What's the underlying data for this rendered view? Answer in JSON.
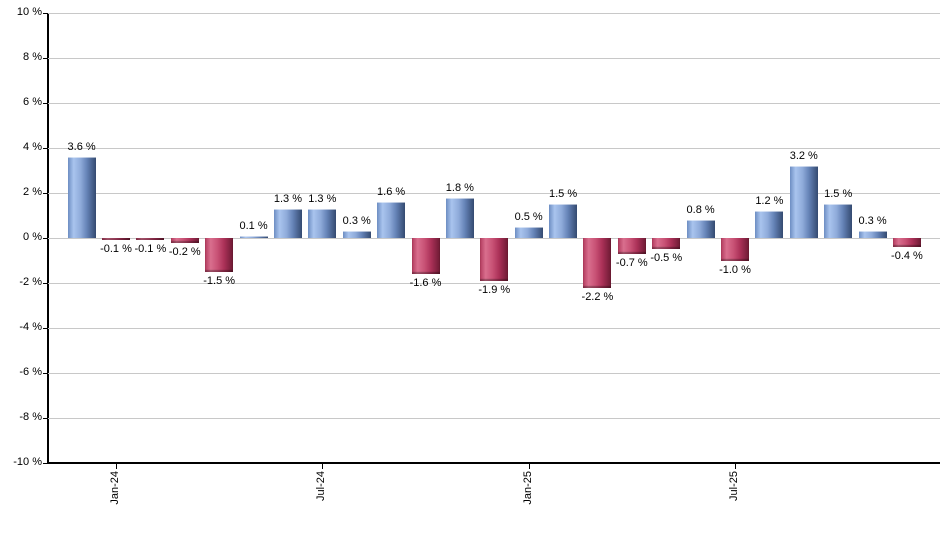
{
  "chart_data": {
    "type": "bar",
    "title": "",
    "unit": "%",
    "values": [
      3.6,
      -0.1,
      -0.1,
      -0.2,
      -1.5,
      0.1,
      1.3,
      1.3,
      0.3,
      1.6,
      -1.6,
      1.8,
      -1.9,
      0.5,
      1.5,
      -2.2,
      -0.7,
      -0.5,
      0.8,
      -1.0,
      1.2,
      3.2,
      1.5,
      0.3,
      -0.4
    ],
    "value_labels": [
      "3.6 %",
      "-0.1 %",
      "-0.1 %",
      "-0.2 %",
      "-1.5 %",
      "0.1 %",
      "1.3 %",
      "1.3 %",
      "0.3 %",
      "1.6 %",
      "-1.6 %",
      "1.8 %",
      "-1.9 %",
      "0.5 %",
      "1.5 %",
      "-2.2 %",
      "-0.7 %",
      "-0.5 %",
      "0.8 %",
      "-1.0 %",
      "1.2 %",
      "3.2 %",
      "1.5 %",
      "0.3 %",
      "-0.4 %"
    ],
    "x_tick_labels": [
      {
        "bar_index": 1,
        "label": "Jan-24"
      },
      {
        "bar_index": 7,
        "label": "Jul-24"
      },
      {
        "bar_index": 13,
        "label": "Jan-25"
      },
      {
        "bar_index": 19,
        "label": "Jul-25"
      }
    ],
    "y_axis": {
      "min": -10,
      "max": 10,
      "step": 2,
      "tick_labels": [
        "10 %",
        "8 %",
        "6 %",
        "4 %",
        "2 %",
        "0 %",
        "-2 %",
        "-4 %",
        "-6 %",
        "-8 %",
        "-10 %"
      ]
    },
    "grid": true,
    "legend": false,
    "colors": {
      "background": "#ffffff",
      "gridline": "#c8c8c8",
      "axis": "#000000",
      "label_text": "#000000",
      "positive_gradient_stops": [
        "#6d8dc2",
        "#a9c4ee",
        "#8fabda",
        "#6482b6",
        "#344a70"
      ],
      "negative_gradient_stops": [
        "#b23a5d",
        "#d96f8e",
        "#c85175",
        "#ab3158",
        "#6d1a33"
      ]
    }
  }
}
